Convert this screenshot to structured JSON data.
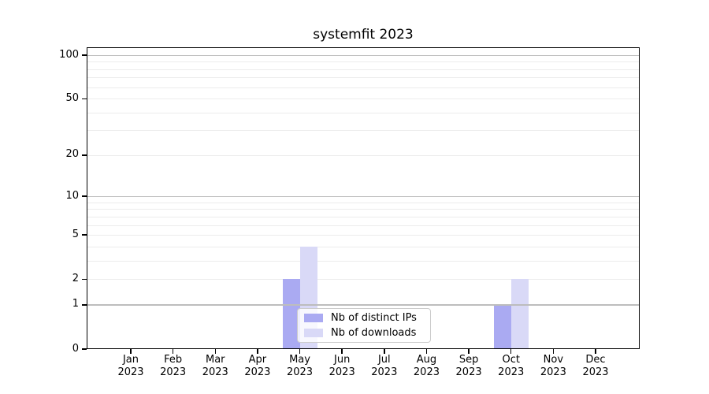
{
  "chart_data": {
    "type": "bar",
    "title": "systemfit 2023",
    "categories": [
      {
        "month": "Jan",
        "year": "2023"
      },
      {
        "month": "Feb",
        "year": "2023"
      },
      {
        "month": "Mar",
        "year": "2023"
      },
      {
        "month": "Apr",
        "year": "2023"
      },
      {
        "month": "May",
        "year": "2023"
      },
      {
        "month": "Jun",
        "year": "2023"
      },
      {
        "month": "Jul",
        "year": "2023"
      },
      {
        "month": "Aug",
        "year": "2023"
      },
      {
        "month": "Sep",
        "year": "2023"
      },
      {
        "month": "Oct",
        "year": "2023"
      },
      {
        "month": "Nov",
        "year": "2023"
      },
      {
        "month": "Dec",
        "year": "2023"
      }
    ],
    "series": [
      {
        "name": "Nb of distinct IPs",
        "color": "#aaaaf2",
        "values": [
          0,
          0,
          0,
          0,
          2,
          0,
          0,
          0,
          0,
          1,
          0,
          0
        ]
      },
      {
        "name": "Nb of downloads",
        "color": "#d9d9f7",
        "values": [
          0,
          0,
          0,
          0,
          4,
          0,
          0,
          0,
          0,
          2,
          0,
          0
        ]
      }
    ],
    "yscale": "log1p",
    "ylim": [
      0,
      114
    ],
    "yticks": [
      0,
      1,
      2,
      5,
      10,
      20,
      50,
      100
    ],
    "grid_major": [
      1,
      10,
      100
    ],
    "grid_minor": [
      2,
      3,
      4,
      5,
      6,
      7,
      8,
      9,
      20,
      30,
      40,
      50,
      60,
      70,
      80,
      90
    ],
    "legend": {
      "position": "lower center"
    },
    "colors": {
      "grid_major": "#bdbdbd",
      "grid_minor": "#ececec",
      "axis": "#000000",
      "background": "#ffffff"
    }
  }
}
